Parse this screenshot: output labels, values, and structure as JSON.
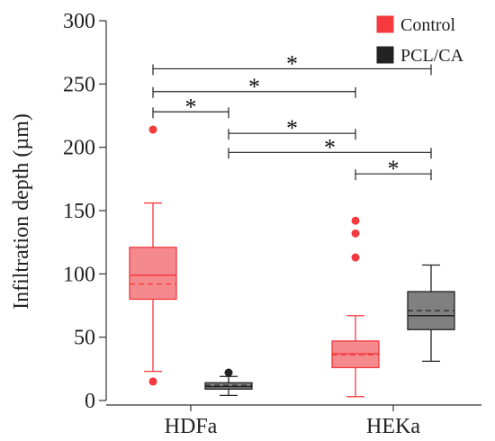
{
  "chart_data": {
    "type": "box",
    "title": "",
    "xlabel": "",
    "ylabel": "Infiltration depth (µm)",
    "ylim": [
      0,
      300
    ],
    "y_ticks": [
      0,
      50,
      100,
      150,
      200,
      250,
      300
    ],
    "grid": false,
    "legend_position": "top-right",
    "categories": [
      "HDFa",
      "HEKa"
    ],
    "series": [
      {
        "name": "Control",
        "color": "#f43a3e",
        "fill": "#f58a8e",
        "boxes": [
          {
            "category": "HDFa",
            "whisker_low": 23,
            "q1": 80,
            "median": 99,
            "mean": 92,
            "q3": 121,
            "whisker_high": 156,
            "outliers": [
              15,
              214
            ]
          },
          {
            "category": "HEKa",
            "whisker_low": 3,
            "q1": 26,
            "median": 37,
            "mean": 36,
            "q3": 47,
            "whisker_high": 67,
            "outliers": [
              113,
              132,
              142
            ]
          }
        ]
      },
      {
        "name": "PCL/CA",
        "color": "#222222",
        "fill": "#808080",
        "boxes": [
          {
            "category": "HDFa",
            "whisker_low": 4,
            "q1": 9,
            "median": 11,
            "mean": 12,
            "q3": 14,
            "whisker_high": 19,
            "outliers": [
              22
            ]
          },
          {
            "category": "HEKa",
            "whisker_low": 31,
            "q1": 56,
            "median": 67,
            "mean": 71,
            "q3": 86,
            "whisker_high": 107,
            "outliers": []
          }
        ]
      }
    ],
    "significance": [
      {
        "from": "HDFa/Control",
        "to": "HEKa/PCL/CA",
        "y": 262,
        "label": "*"
      },
      {
        "from": "HDFa/Control",
        "to": "HEKa/Control",
        "y": 244,
        "label": "*"
      },
      {
        "from": "HDFa/Control",
        "to": "HDFa/PCL/CA",
        "y": 228,
        "label": "*"
      },
      {
        "from": "HDFa/PCL/CA",
        "to": "HEKa/Control",
        "y": 211,
        "label": "*"
      },
      {
        "from": "HDFa/PCL/CA",
        "to": "HEKa/PCL/CA",
        "y": 196,
        "label": "*"
      },
      {
        "from": "HEKa/Control",
        "to": "HEKa/PCL/CA",
        "y": 179,
        "label": "*"
      }
    ]
  }
}
